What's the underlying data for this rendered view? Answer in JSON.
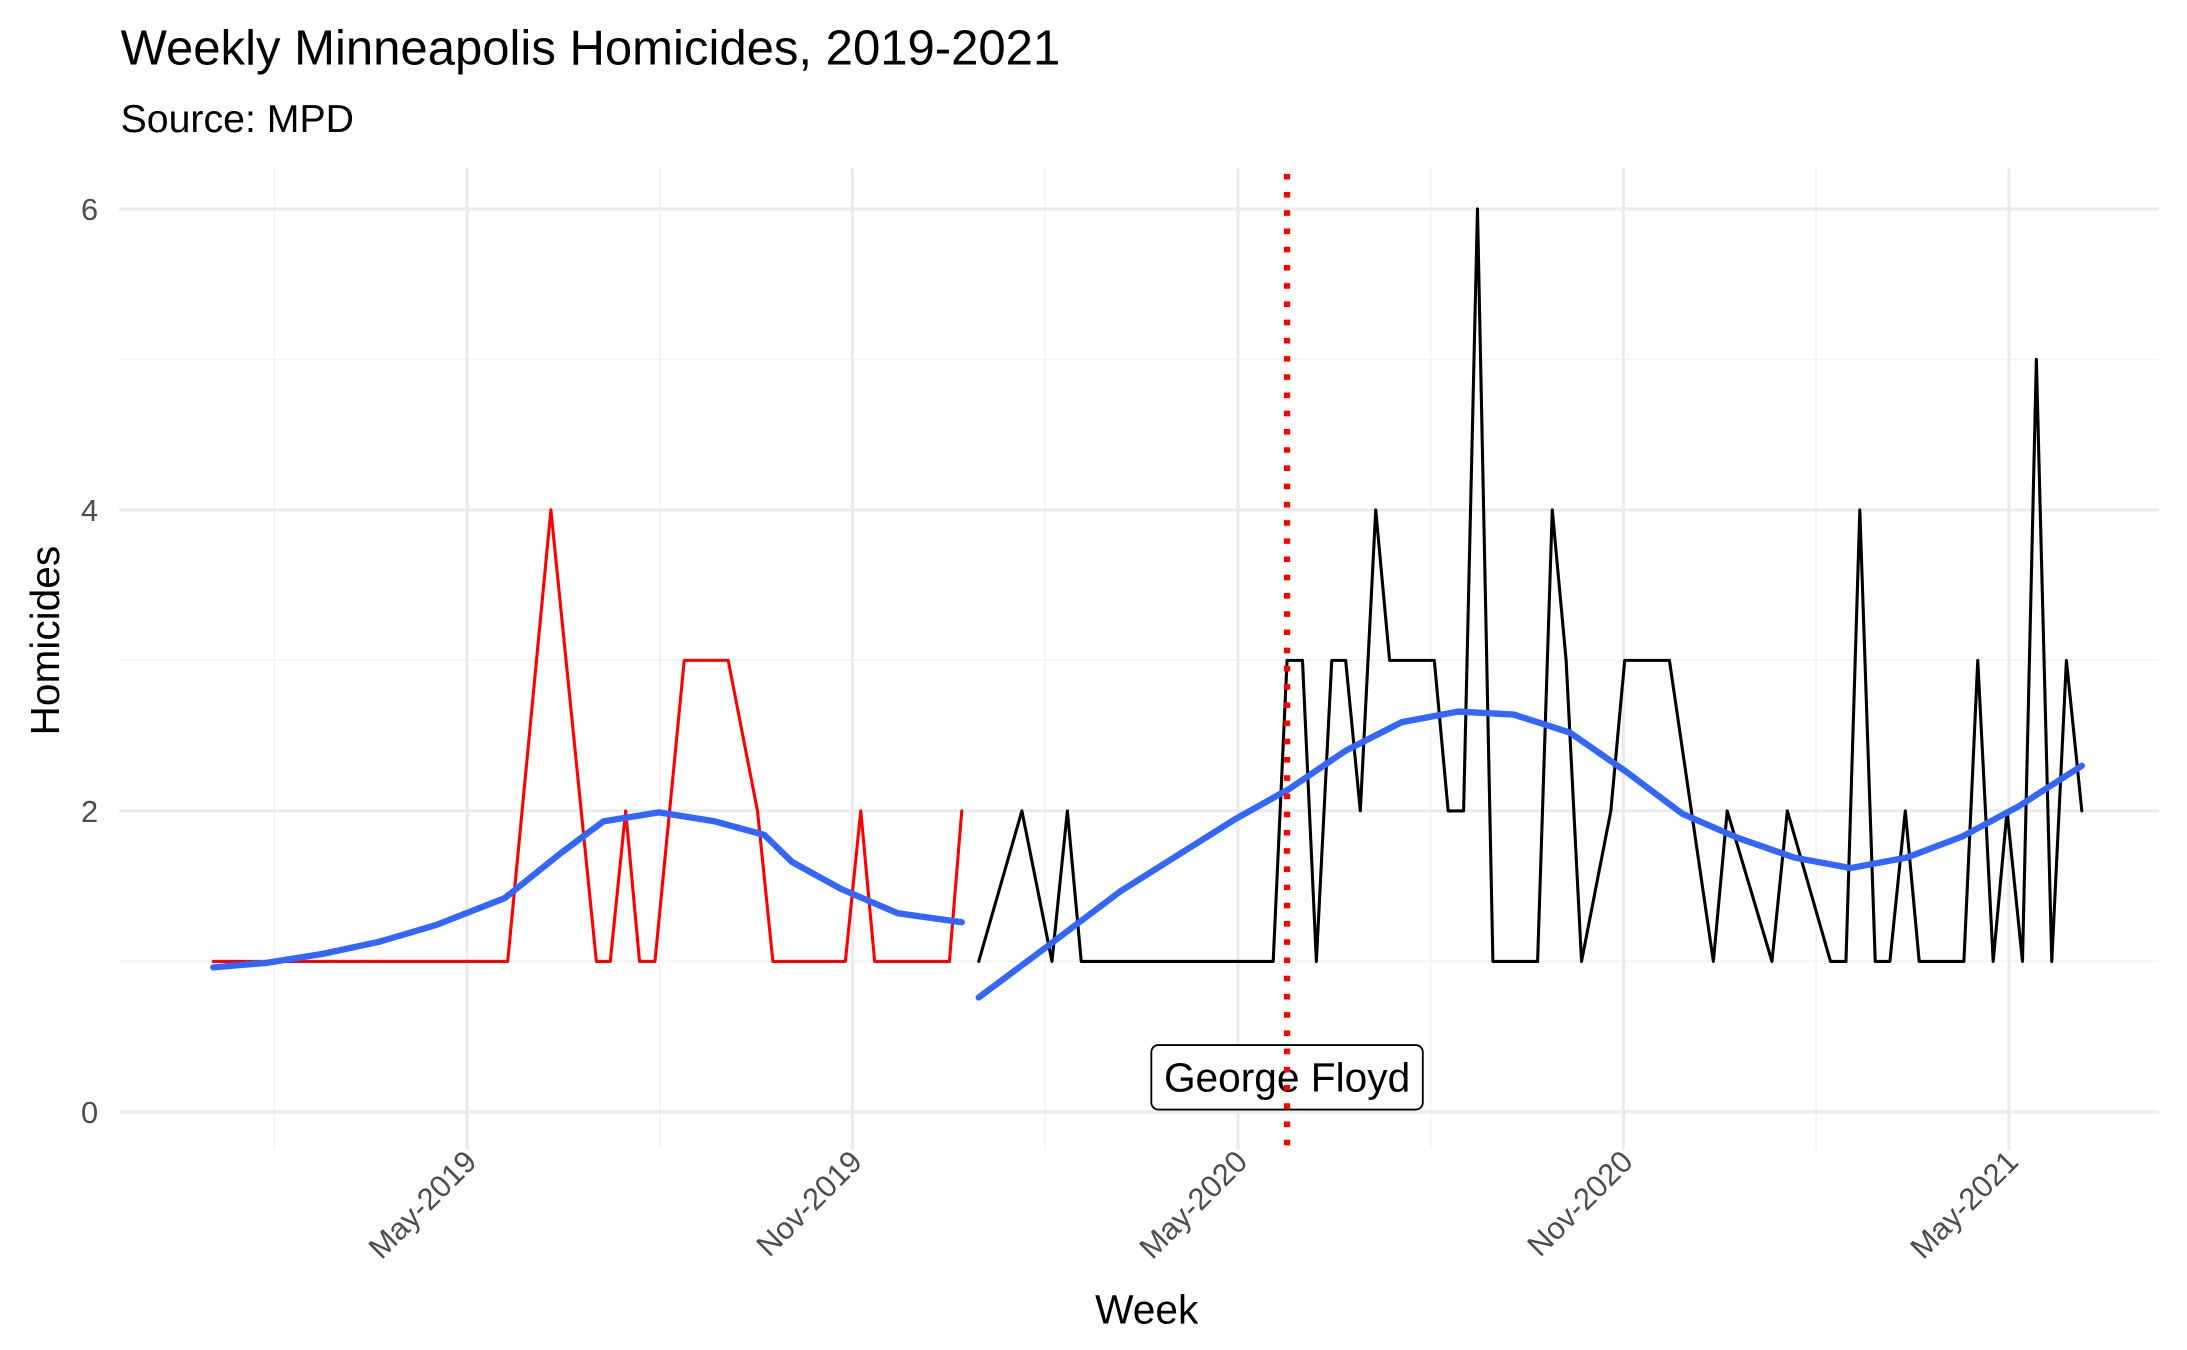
{
  "chart_data": {
    "type": "line",
    "title": "Weekly Minneapolis Homicides, 2019-2021",
    "subtitle": "Source: MPD",
    "x_label": "Week",
    "y_label": "Homicides",
    "xlim": [
      2018.882,
      2021.528
    ],
    "ylim": [
      -0.25,
      6.27
    ],
    "xticks": [
      {
        "value": 2019.3333,
        "label": "May-2019"
      },
      {
        "value": 2019.8333,
        "label": "Nov-2019"
      },
      {
        "value": 2020.3333,
        "label": "May-2020"
      },
      {
        "value": 2020.8333,
        "label": "Nov-2020"
      },
      {
        "value": 2021.3333,
        "label": "May-2021"
      }
    ],
    "minor_xticks": [
      2019.0833,
      2019.5833,
      2020.0833,
      2020.5833,
      2021.0833
    ],
    "yticks": [
      0,
      2,
      4,
      6
    ],
    "minor_yticks": [
      1,
      3,
      5
    ],
    "grid": true,
    "series": [
      {
        "color": "#ff0000",
        "width": 2.2,
        "x": [
          2019.004,
          2019.386,
          2019.442,
          2019.501,
          2019.519,
          2019.539,
          2019.557,
          2019.577,
          2019.615,
          2019.672,
          2019.71,
          2019.73,
          2019.824,
          2019.844,
          2019.862,
          2019.959,
          2019.975
        ],
        "values": [
          1,
          1,
          4,
          1,
          1,
          2,
          1,
          1,
          3,
          3,
          2,
          1,
          1,
          2,
          1,
          1,
          2
        ]
      },
      {
        "color": "#000000",
        "width": 2.2,
        "x": [
          2019.997,
          2020.053,
          2020.092,
          2020.112,
          2020.13,
          2020.379,
          2020.397,
          2020.417,
          2020.435,
          2020.455,
          2020.473,
          2020.492,
          2020.512,
          2020.53,
          2020.588,
          2020.606,
          2020.626,
          2020.644,
          2020.664,
          2020.722,
          2020.741,
          2020.759,
          2020.779,
          2020.817,
          2020.835,
          2020.893,
          2020.95,
          2020.968,
          2021.026,
          2021.046,
          2021.102,
          2021.122,
          2021.14,
          2021.16,
          2021.179,
          2021.199,
          2021.217,
          2021.275,
          2021.293,
          2021.313,
          2021.331,
          2021.351,
          2021.369,
          2021.389,
          2021.408,
          2021.428
        ],
        "values": [
          1,
          2,
          1,
          2,
          1,
          1,
          3,
          3,
          1,
          3,
          3,
          2,
          4,
          3,
          3,
          2,
          2,
          6,
          1,
          1,
          4,
          3,
          1,
          2,
          3,
          3,
          1,
          2,
          1,
          2,
          1,
          1,
          4,
          1,
          1,
          2,
          1,
          1,
          3,
          1,
          2,
          1,
          5,
          1,
          3,
          2
        ]
      },
      {
        "color": "#3366ff",
        "width": 4.5,
        "x": [
          2019.004,
          2019.073,
          2019.146,
          2019.219,
          2019.292,
          2019.382,
          2019.455,
          2019.51,
          2019.582,
          2019.655,
          2019.719,
          2019.755,
          2019.819,
          2019.892,
          2019.975
        ],
        "values": [
          0.96,
          0.99,
          1.05,
          1.13,
          1.24,
          1.42,
          1.72,
          1.93,
          1.99,
          1.93,
          1.84,
          1.66,
          1.48,
          1.32,
          1.26
        ]
      },
      {
        "color": "#3366ff",
        "width": 4.5,
        "x": [
          2019.997,
          2020.073,
          2020.182,
          2020.328,
          2020.401,
          2020.473,
          2020.546,
          2020.619,
          2020.691,
          2020.764,
          2020.837,
          2020.91,
          2020.982,
          2021.055,
          2021.128,
          2021.201,
          2021.273,
          2021.346,
          2021.428
        ],
        "values": [
          0.76,
          1.05,
          1.47,
          1.94,
          2.15,
          2.4,
          2.59,
          2.66,
          2.64,
          2.52,
          2.26,
          1.98,
          1.82,
          1.69,
          1.62,
          1.69,
          1.83,
          2.03,
          2.3
        ]
      }
    ],
    "vline": {
      "x": 2020.397,
      "color": "#ff0000"
    },
    "annotation": {
      "text": "George Floyd",
      "x": 2020.397,
      "y": 0.23
    }
  }
}
